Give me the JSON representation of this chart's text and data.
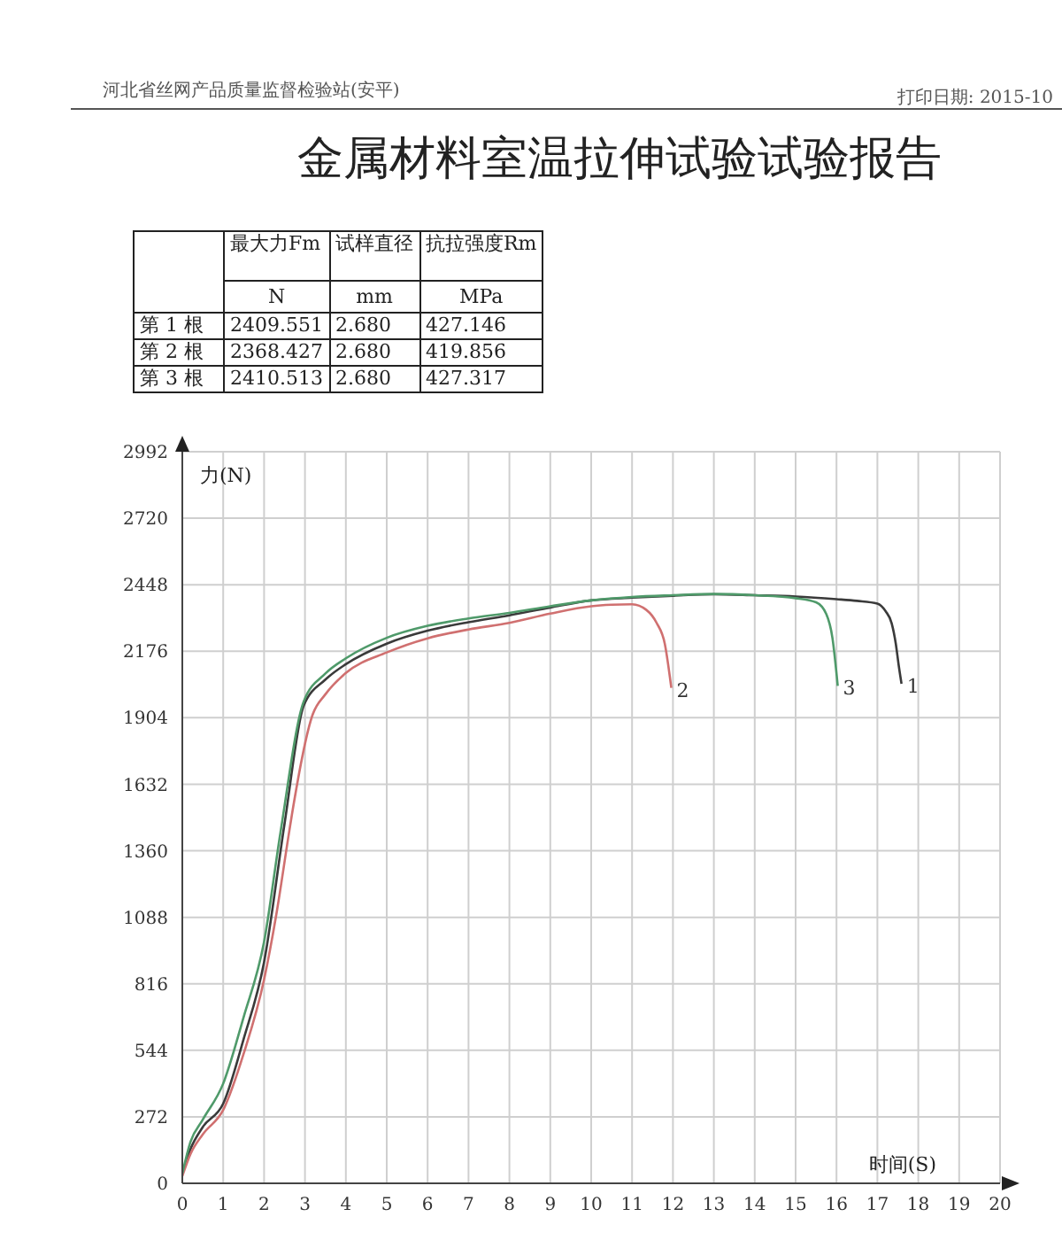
{
  "chart_data": {
    "type": "line",
    "title": "金属材料室温拉伸试验试验报告",
    "xlabel": "时间(S)",
    "ylabel": "力(N)",
    "xlim": [
      0,
      20
    ],
    "xticks": [
      0,
      1,
      2,
      3,
      4,
      5,
      6,
      7,
      8,
      9,
      10,
      11,
      12,
      13,
      14,
      15,
      16,
      17,
      18,
      19,
      20
    ],
    "ylim": [
      0,
      2992
    ],
    "yticks": [
      0,
      272,
      544,
      816,
      1088,
      1360,
      1632,
      1904,
      2176,
      2448,
      2720,
      2992
    ],
    "grid": true,
    "series": [
      {
        "name": "1",
        "color": "#3a3a3a",
        "x": [
          0,
          0.2,
          0.5,
          1,
          1.5,
          2,
          2.5,
          2.97,
          3.5,
          4,
          5,
          6,
          7,
          8,
          9,
          10,
          11,
          12,
          13,
          14,
          15,
          16,
          16.5,
          17,
          17.2,
          17.35,
          17.45,
          17.52,
          17.59
        ],
        "values": [
          40,
          140,
          230,
          326,
          590,
          905,
          1470,
          1954,
          2060,
          2123,
          2207,
          2260,
          2295,
          2323,
          2355,
          2384,
          2395,
          2403,
          2409,
          2405,
          2400,
          2389,
          2382,
          2371,
          2340,
          2290,
          2207,
          2120,
          2043
        ]
      },
      {
        "name": "2",
        "color": "#d07070",
        "x": [
          0,
          0.2,
          0.5,
          1,
          1.5,
          2,
          2.3,
          2.61,
          2.68,
          3.19,
          3.5,
          4,
          5,
          6,
          7,
          8,
          9,
          10,
          10.5,
          11,
          11.35,
          11.6,
          11.8,
          11.96
        ],
        "values": [
          30,
          120,
          200,
          300,
          530,
          833,
          1100,
          1434,
          1507,
          1918,
          2000,
          2087,
          2171,
          2229,
          2265,
          2292,
          2330,
          2360,
          2366,
          2368,
          2345,
          2292,
          2207,
          2026
        ]
      },
      {
        "name": "3",
        "color": "#4f9a6a",
        "x": [
          0,
          0.2,
          0.5,
          1,
          1.5,
          2,
          2.4,
          2.97,
          3.5,
          4,
          5,
          6,
          7,
          8,
          9,
          10,
          11,
          12,
          13,
          14,
          15,
          15.5,
          15.75,
          15.9,
          16.03
        ],
        "values": [
          40,
          170,
          260,
          408,
          680,
          988,
          1434,
          1971,
          2085,
          2147,
          2231,
          2280,
          2310,
          2333,
          2360,
          2384,
          2398,
          2405,
          2410,
          2405,
          2393,
          2376,
          2328,
          2231,
          2034
        ]
      }
    ],
    "annotations": [
      "河北省丝网产品质量监督检验站(安平)",
      "打印日期: 2015-10",
      "最大力Fm",
      "试样直径",
      "抗拉强度Rm",
      "N",
      "mm",
      "MPa",
      "第 1 根",
      "2409.551",
      "2.680",
      "427.146",
      "第 2 根",
      "2368.427",
      "2.680",
      "419.856",
      "第 3 根",
      "2410.513",
      "2.680",
      "427.317"
    ]
  }
}
